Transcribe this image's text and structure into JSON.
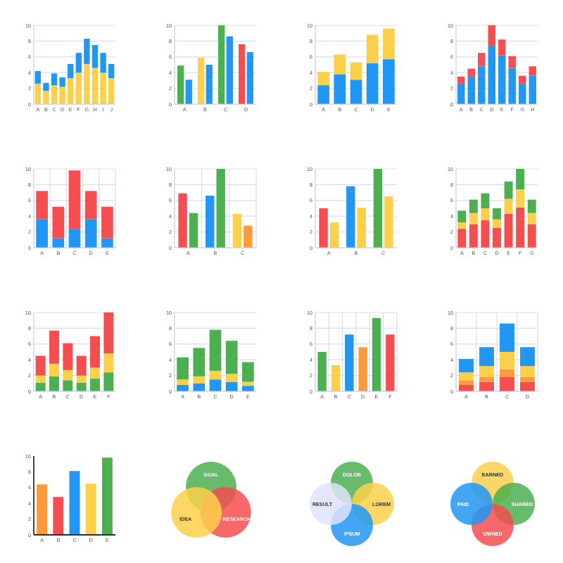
{
  "chart_data": [
    {
      "type": "bar",
      "stacked": true,
      "categories": [
        "A",
        "B",
        "C",
        "D",
        "E",
        "F",
        "G",
        "H",
        "I",
        "J"
      ],
      "series": [
        {
          "color": "#fdd04a",
          "values": [
            2.6,
            1.7,
            2.4,
            2.2,
            3.3,
            4.0,
            5.1,
            4.6,
            4.0,
            3.3
          ]
        },
        {
          "color": "#2196f3",
          "values": [
            1.6,
            1.0,
            1.5,
            1.2,
            1.8,
            2.5,
            3.2,
            2.9,
            2.5,
            1.8
          ]
        }
      ],
      "ylim": [
        0,
        10
      ],
      "yticks": [
        0,
        2,
        4,
        6,
        8,
        10
      ],
      "grid": "y"
    },
    {
      "type": "bar",
      "categories": [
        "A",
        "B",
        "C",
        "D"
      ],
      "series": [
        {
          "colors": [
            "#4caf50",
            "#fdd04a",
            "#4caf50",
            "#f44e50"
          ],
          "values": [
            4.9,
            5.9,
            10,
            7.6
          ]
        },
        {
          "color": "#2196f3",
          "values": [
            3.1,
            5.0,
            8.6,
            6.6
          ]
        }
      ],
      "ylim": [
        0,
        10
      ],
      "yticks": [
        0,
        2,
        4,
        6,
        8,
        10
      ],
      "grid": "y"
    },
    {
      "type": "bar",
      "stacked": true,
      "categories": [
        "A",
        "B",
        "C",
        "D",
        "E"
      ],
      "series": [
        {
          "color": "#2196f3",
          "values": [
            2.4,
            3.8,
            3.1,
            5.2,
            5.7
          ]
        },
        {
          "color": "#fdd04a",
          "values": [
            1.7,
            2.5,
            2.2,
            3.6,
            3.9
          ]
        }
      ],
      "ylim": [
        0,
        10
      ],
      "yticks": [
        0,
        2,
        4,
        6,
        8,
        10
      ],
      "grid": "y"
    },
    {
      "type": "bar",
      "stacked": true,
      "categories": [
        "A",
        "B",
        "C",
        "D",
        "E",
        "F",
        "G",
        "H"
      ],
      "series": [
        {
          "color": "#2196f3",
          "values": [
            2.6,
            3.4,
            4.8,
            7.4,
            6.2,
            4.6,
            2.6,
            3.6
          ]
        },
        {
          "color": "#f44e50",
          "values": [
            0.9,
            1.1,
            1.7,
            2.6,
            2.0,
            1.5,
            1.0,
            1.2
          ]
        }
      ],
      "ylim": [
        0,
        10
      ],
      "yticks": [
        0,
        2,
        4,
        6,
        8,
        10
      ],
      "grid": "y"
    },
    {
      "type": "bar",
      "stacked": true,
      "categories": [
        "A",
        "B",
        "C",
        "D",
        "E"
      ],
      "series": [
        {
          "color": "#2196f3",
          "values": [
            3.6,
            1.2,
            2.4,
            3.6,
            1.2
          ]
        },
        {
          "color": "#f44e50",
          "values": [
            3.6,
            4.0,
            7.4,
            3.6,
            4.0
          ]
        }
      ],
      "ylim": [
        0,
        10
      ],
      "yticks": [
        0,
        2,
        4,
        6,
        8,
        10
      ],
      "grid": true
    },
    {
      "type": "bar",
      "categories": [
        "A",
        "B",
        "C"
      ],
      "series": [
        {
          "colors": [
            "#f44e50",
            "#2196f3",
            "#fdd04a"
          ],
          "values": [
            6.9,
            6.6,
            4.3
          ]
        },
        {
          "colors": [
            "#4caf50",
            "#4caf50",
            "#ff9a3c"
          ],
          "values": [
            4.4,
            10,
            2.8
          ]
        }
      ],
      "ylim": [
        0,
        10
      ],
      "yticks": [
        0,
        2,
        4,
        6,
        8,
        10
      ],
      "grid": true
    },
    {
      "type": "bar",
      "categories": [
        "A",
        "B",
        "C"
      ],
      "series": [
        {
          "colors": [
            "#f44e50",
            "#2196f3",
            "#4caf50"
          ],
          "values": [
            5.0,
            7.8,
            10
          ]
        },
        {
          "color": "#fdd04a",
          "values": [
            3.2,
            5.1,
            6.5
          ]
        }
      ],
      "ylim": [
        0,
        10
      ],
      "yticks": [
        0,
        2,
        4,
        6,
        8,
        10
      ],
      "grid": "y"
    },
    {
      "type": "bar",
      "stacked": true,
      "categories": [
        "A",
        "B",
        "C",
        "D",
        "E",
        "F",
        "G"
      ],
      "series": [
        {
          "color": "#f44e50",
          "values": [
            2.4,
            3.0,
            3.5,
            2.5,
            4.3,
            5.1,
            3.0
          ]
        },
        {
          "color": "#fdd04a",
          "values": [
            0.8,
            1.4,
            1.5,
            1.1,
            1.9,
            2.3,
            1.4
          ]
        },
        {
          "color": "#4caf50",
          "values": [
            1.5,
            1.7,
            1.9,
            1.4,
            2.2,
            2.6,
            1.7
          ]
        }
      ],
      "ylim": [
        0,
        10
      ],
      "yticks": [
        0,
        2,
        4,
        6,
        8,
        10
      ],
      "grid": "y"
    },
    {
      "type": "bar",
      "stacked": true,
      "categories": [
        "A",
        "B",
        "C",
        "D",
        "E",
        "F"
      ],
      "series": [
        {
          "color": "#4caf50",
          "values": [
            1.1,
            1.9,
            1.4,
            1.1,
            1.6,
            2.4
          ]
        },
        {
          "color": "#fdd04a",
          "values": [
            0.9,
            1.6,
            1.3,
            0.9,
            1.4,
            2.4
          ]
        },
        {
          "color": "#f44e50",
          "values": [
            2.5,
            4.2,
            3.4,
            2.5,
            4.0,
            5.2
          ]
        }
      ],
      "ylim": [
        0,
        10
      ],
      "yticks": [
        0,
        2,
        4,
        6,
        8,
        10
      ],
      "grid": "y"
    },
    {
      "type": "bar",
      "stacked": true,
      "categories": [
        "A",
        "B",
        "C",
        "D",
        "E"
      ],
      "series": [
        {
          "color": "#2196f3",
          "values": [
            0.8,
            1.0,
            1.5,
            1.2,
            0.7
          ]
        },
        {
          "color": "#fdd04a",
          "values": [
            0.7,
            0.9,
            1.1,
            1.0,
            0.5
          ]
        },
        {
          "color": "#4caf50",
          "values": [
            2.8,
            3.6,
            5.2,
            4.2,
            2.5
          ]
        }
      ],
      "ylim": [
        0,
        10
      ],
      "yticks": [
        0,
        2,
        4,
        6,
        8,
        10
      ],
      "grid": "y"
    },
    {
      "type": "bar",
      "categories": [
        "A",
        "B",
        "C",
        "D",
        "E",
        "F"
      ],
      "colors": [
        "#4caf50",
        "#fdd04a",
        "#2196f3",
        "#ff9a3c",
        "#4caf50",
        "#f44e50"
      ],
      "values": [
        5.0,
        3.3,
        7.2,
        5.6,
        9.3,
        7.2
      ],
      "ylim": [
        0,
        10
      ],
      "yticks": [
        0,
        2,
        4,
        6,
        8,
        10
      ],
      "grid": true
    },
    {
      "type": "bar",
      "stacked": true,
      "categories": [
        "A",
        "B",
        "C",
        "D"
      ],
      "series": [
        {
          "color": "#f44e50",
          "values": [
            0.8,
            1.2,
            1.8,
            1.2
          ]
        },
        {
          "color": "#ff9a3c",
          "values": [
            0.6,
            0.6,
            1.0,
            0.6
          ]
        },
        {
          "color": "#fdd04a",
          "values": [
            1.0,
            1.4,
            2.2,
            1.4
          ]
        },
        {
          "color": "#2196f3",
          "values": [
            1.7,
            2.4,
            3.6,
            2.4
          ]
        }
      ],
      "ylim": [
        0,
        10
      ],
      "yticks": [
        0,
        2,
        4,
        6,
        8,
        10
      ],
      "grid": true
    },
    {
      "type": "bar",
      "categories": [
        "A",
        "B",
        "C",
        "D",
        "E"
      ],
      "colors": [
        "#ff9a3c",
        "#f44e50",
        "#2196f3",
        "#fdd04a",
        "#4caf50"
      ],
      "values": [
        6.4,
        4.8,
        8.1,
        6.5,
        9.8
      ],
      "ylim": [
        0,
        10
      ],
      "yticks": [
        0,
        2,
        4,
        6,
        8,
        10
      ]
    },
    {
      "type": "other",
      "annotations": [
        "GOAL",
        "RESEARCH",
        "IDEA"
      ],
      "colors": [
        "#4caf50",
        "#f44e50",
        "#fdd04a"
      ]
    },
    {
      "type": "other",
      "annotations": [
        "DOLOR",
        "LOREM",
        "IPSUM",
        "RESULT"
      ],
      "colors": [
        "#4caf50",
        "#fdd04a",
        "#2196f3",
        "#dfe3f8"
      ]
    },
    {
      "type": "other",
      "annotations": [
        "EARNED",
        "SHARED",
        "OWNED",
        "PAID"
      ],
      "colors": [
        "#fdd04a",
        "#4caf50",
        "#f44e50",
        "#2196f3"
      ]
    }
  ]
}
